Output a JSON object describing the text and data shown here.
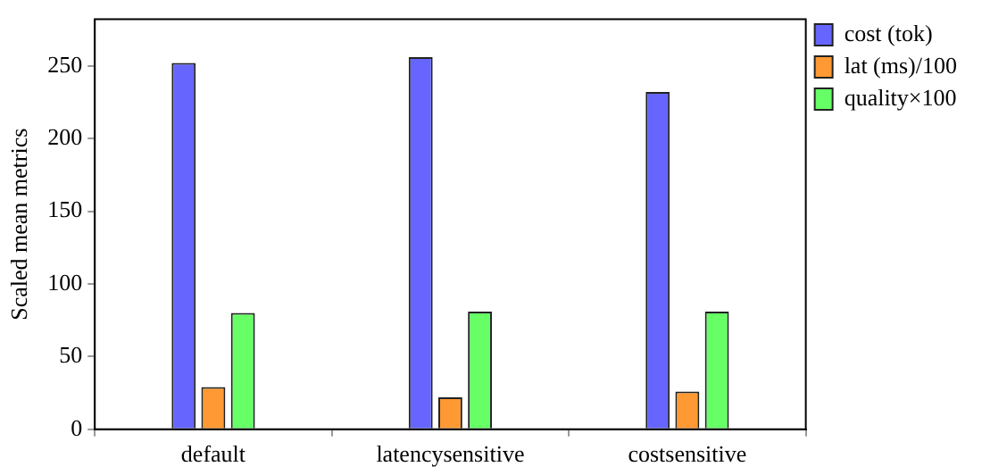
{
  "chart_data": {
    "type": "bar",
    "ylabel": "Scaled mean metrics",
    "categories": [
      "default",
      "latencysensitive",
      "costsensitive"
    ],
    "series": [
      {
        "name": "cost (tok)",
        "color": "#6666ff",
        "values": [
          252,
          256,
          232
        ]
      },
      {
        "name": "lat (ms)/100",
        "color": "#ff9933",
        "values": [
          29,
          22,
          26
        ]
      },
      {
        "name": "quality×100",
        "color": "#66ff66",
        "values": [
          80,
          81,
          81
        ]
      }
    ],
    "ylim": [
      0,
      282
    ],
    "yticks": [
      0,
      50,
      100,
      150,
      200,
      250
    ],
    "grid": false,
    "legend": "top right"
  }
}
